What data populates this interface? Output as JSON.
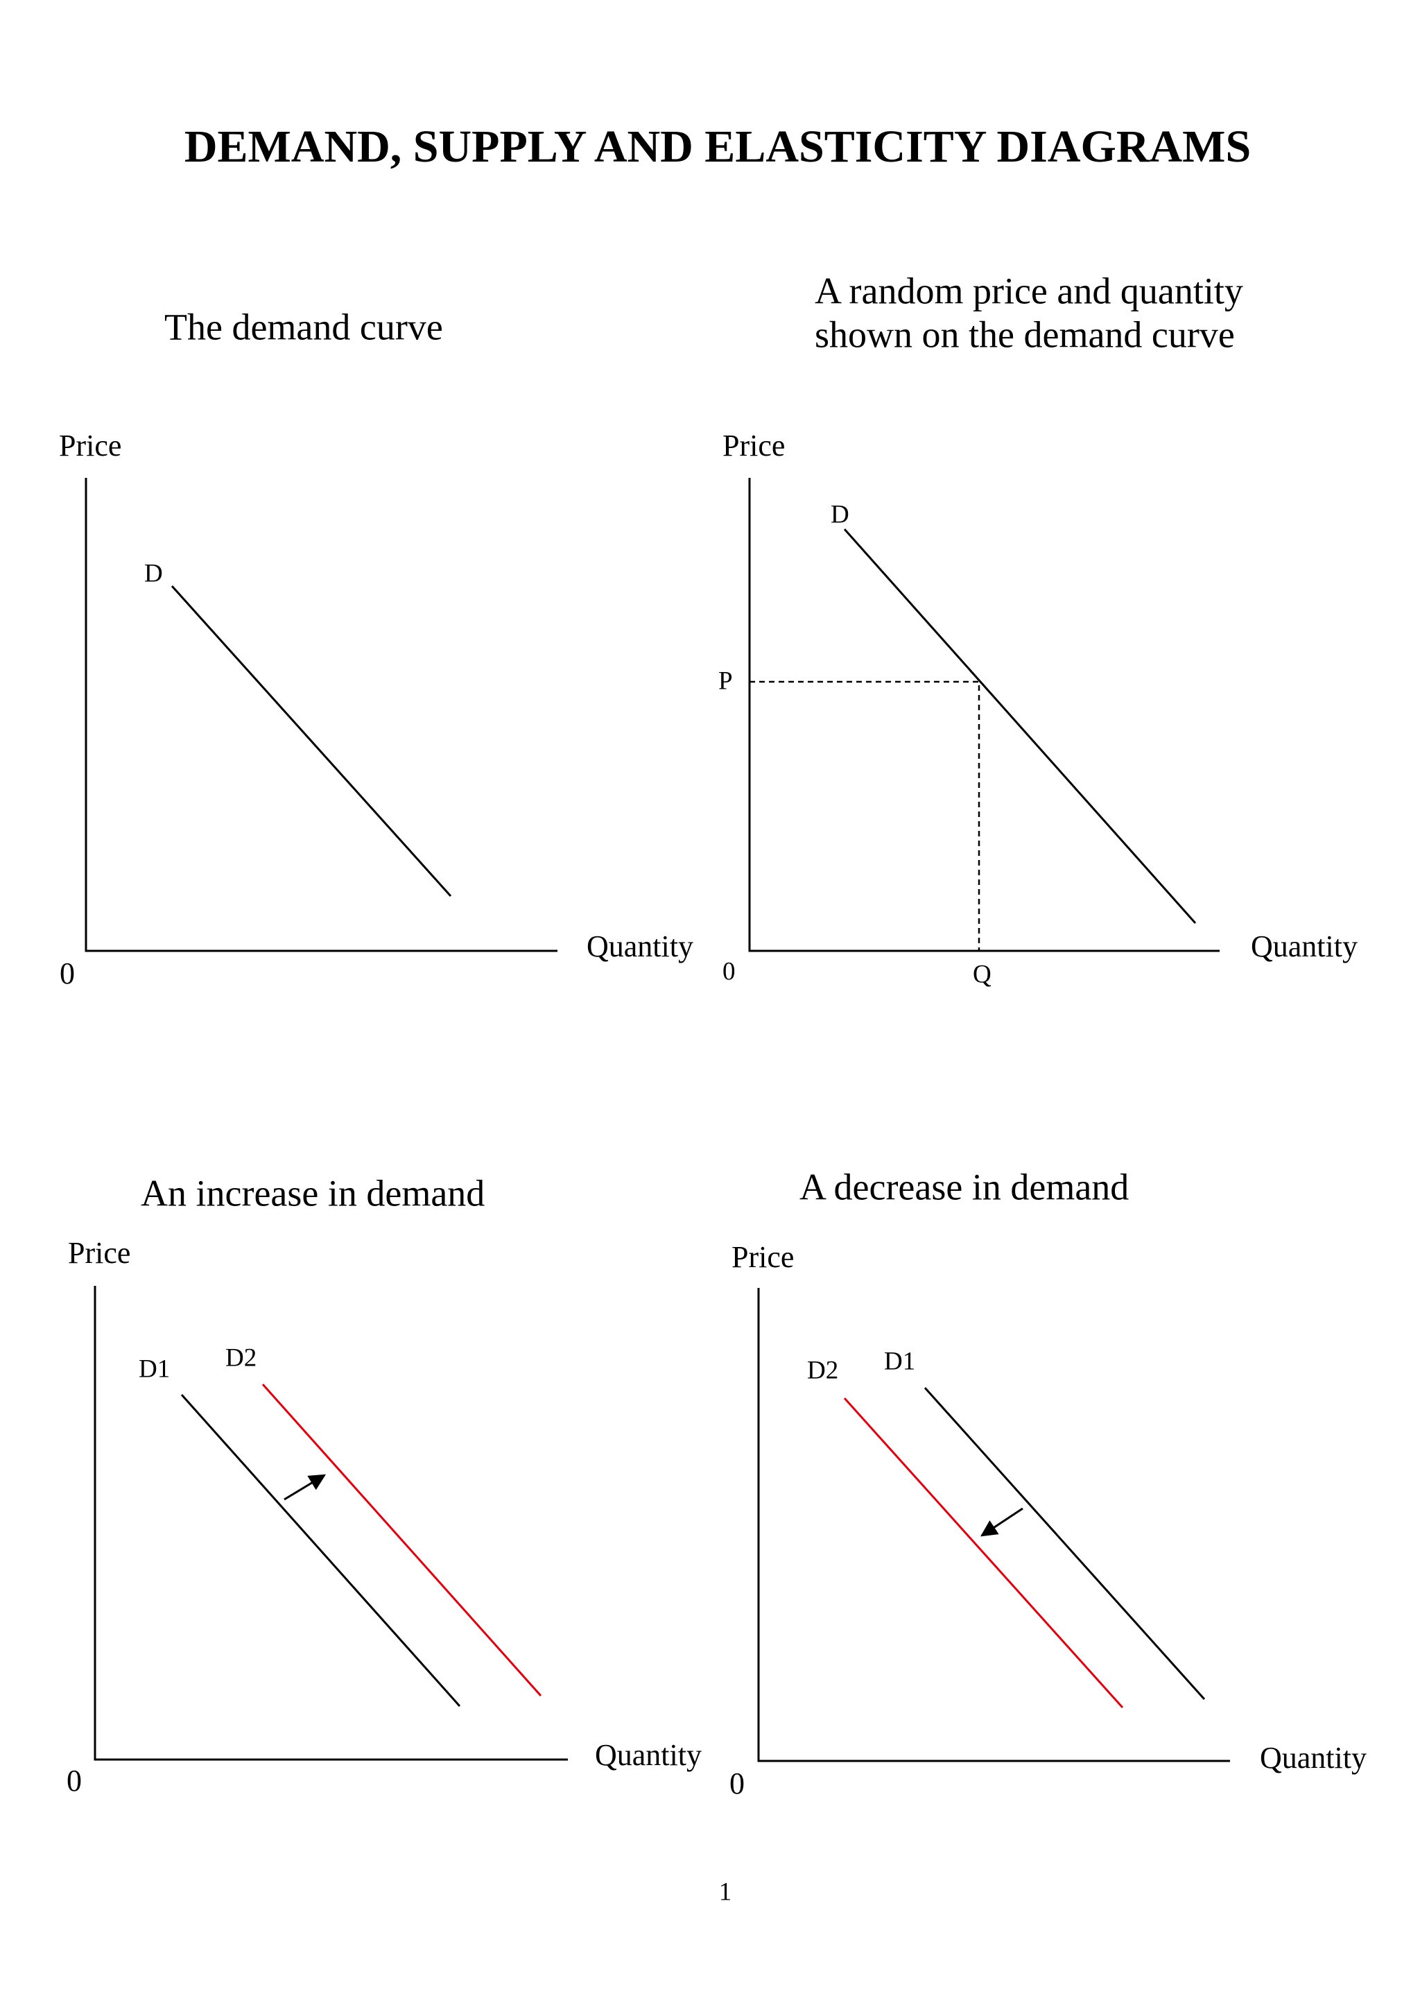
{
  "title": "DEMAND, SUPPLY AND ELASTICITY DIAGRAMS",
  "page_number": "1",
  "diagrams": [
    {
      "caption": [
        "The demand curve"
      ],
      "y_axis": "Price",
      "x_axis": "Quantity",
      "origin": "0",
      "labels": [
        "D"
      ]
    },
    {
      "caption": [
        "A random price and quantity",
        "shown on the demand curve"
      ],
      "y_axis": "Price",
      "x_axis": "Quantity",
      "origin": "0",
      "labels": [
        "D",
        "P",
        "Q"
      ]
    },
    {
      "caption": [
        "An increase in demand"
      ],
      "y_axis": "Price",
      "x_axis": "Quantity",
      "origin": "0",
      "labels": [
        "D1",
        "D2"
      ]
    },
    {
      "caption": [
        "A decrease in demand"
      ],
      "y_axis": "Price",
      "x_axis": "Quantity",
      "origin": "0",
      "labels": [
        "D2",
        "D1"
      ]
    }
  ]
}
